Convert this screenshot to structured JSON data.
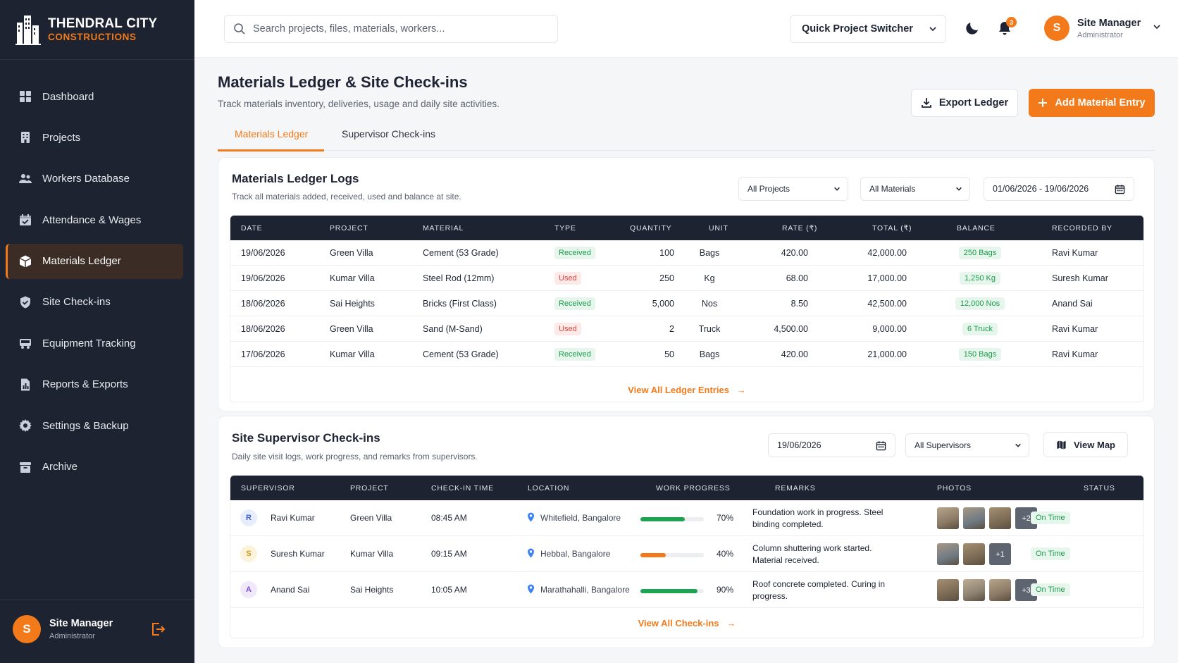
{
  "brand": {
    "name": "THENDRAL CITY",
    "sub": "CONSTRUCTIONS"
  },
  "sidebar": {
    "items": [
      {
        "label": "Dashboard",
        "icon": "grid-icon"
      },
      {
        "label": "Projects",
        "icon": "building-icon"
      },
      {
        "label": "Workers Database",
        "icon": "users-icon"
      },
      {
        "label": "Attendance & Wages",
        "icon": "calendar-check-icon"
      },
      {
        "label": "Materials Ledger",
        "icon": "box-icon",
        "active": true
      },
      {
        "label": "Site Check-ins",
        "icon": "shield-check-icon"
      },
      {
        "label": "Equipment Tracking",
        "icon": "truck-icon"
      },
      {
        "label": "Reports & Exports",
        "icon": "report-icon"
      },
      {
        "label": "Settings & Backup",
        "icon": "gear-icon"
      },
      {
        "label": "Archive",
        "icon": "archive-icon"
      }
    ],
    "user": {
      "initial": "S",
      "name": "Site Manager",
      "role": "Administrator"
    }
  },
  "topbar": {
    "search_placeholder": "Search projects, files, materials, workers...",
    "switcher": "Quick Project Switcher",
    "notifications": "3",
    "user": {
      "initial": "S",
      "name": "Site Manager",
      "role": "Administrator"
    }
  },
  "page": {
    "title": "Materials Ledger & Site Check-ins",
    "subtitle": "Track materials inventory, deliveries, usage and daily site activities.",
    "export_label": "Export Ledger",
    "add_label": "Add Material Entry",
    "tabs": [
      "Materials Ledger",
      "Supervisor Check-ins"
    ]
  },
  "ledger": {
    "title": "Materials Ledger Logs",
    "subtitle": "Track all materials added, received, used and balance at site.",
    "filter_project": "All Projects",
    "filter_material": "All Materials",
    "date_range": "01/06/2026 - 19/06/2026",
    "columns": [
      "DATE",
      "PROJECT",
      "MATERIAL",
      "TYPE",
      "QUANTITY",
      "UNIT",
      "RATE (₹)",
      "TOTAL (₹)",
      "BALANCE",
      "RECORDED BY"
    ],
    "rows": [
      {
        "date": "19/06/2026",
        "project": "Green Villa",
        "material": "Cement (53 Grade)",
        "type": "Received",
        "qty": "100",
        "unit": "Bags",
        "rate": "420.00",
        "total": "42,000.00",
        "balance": "250 Bags",
        "by": "Ravi Kumar"
      },
      {
        "date": "19/06/2026",
        "project": "Kumar Villa",
        "material": "Steel Rod (12mm)",
        "type": "Used",
        "qty": "250",
        "unit": "Kg",
        "rate": "68.00",
        "total": "17,000.00",
        "balance": "1,250 Kg",
        "by": "Suresh Kumar"
      },
      {
        "date": "18/06/2026",
        "project": "Sai Heights",
        "material": "Bricks (First Class)",
        "type": "Received",
        "qty": "5,000",
        "unit": "Nos",
        "rate": "8.50",
        "total": "42,500.00",
        "balance": "12,000 Nos",
        "by": "Anand Sai"
      },
      {
        "date": "18/06/2026",
        "project": "Green Villa",
        "material": "Sand (M-Sand)",
        "type": "Used",
        "qty": "2",
        "unit": "Truck",
        "rate": "4,500.00",
        "total": "9,000.00",
        "balance": "6 Truck",
        "by": "Ravi Kumar"
      },
      {
        "date": "17/06/2026",
        "project": "Kumar Villa",
        "material": "Cement (53 Grade)",
        "type": "Received",
        "qty": "50",
        "unit": "Bags",
        "rate": "420.00",
        "total": "21,000.00",
        "balance": "150 Bags",
        "by": "Ravi Kumar"
      }
    ],
    "view_all": "View All Ledger Entries"
  },
  "checkins": {
    "title": "Site Supervisor Check-ins",
    "subtitle": "Daily site visit logs, work progress, and remarks from supervisors.",
    "date": "19/06/2026",
    "filter_supervisor": "All Supervisors",
    "map_label": "View Map",
    "columns": [
      "SUPERVISOR",
      "PROJECT",
      "CHECK-IN TIME",
      "LOCATION",
      "WORK PROGRESS",
      "REMARKS",
      "PHOTOS",
      "STATUS"
    ],
    "rows": [
      {
        "initial": "R",
        "name": "Ravi Kumar",
        "project": "Green Villa",
        "time": "08:45 AM",
        "location": "Whitefield, Bangalore",
        "progress": 70,
        "progress_label": "70%",
        "color": "#1fa353",
        "remarks": "Foundation work in progress. Steel binding completed.",
        "photos": 3,
        "more": "+2",
        "status": "On Time",
        "avatar_bg": "#e8edfb",
        "avatar_fg": "#3a5fd0"
      },
      {
        "initial": "S",
        "name": "Suresh Kumar",
        "project": "Kumar Villa",
        "time": "09:15 AM",
        "location": "Hebbal, Bangalore",
        "progress": 40,
        "progress_label": "40%",
        "color": "#f27a1a",
        "remarks": "Column shuttering work started. Material received.",
        "photos": 2,
        "more": "+1",
        "status": "On Time",
        "avatar_bg": "#fdf3dc",
        "avatar_fg": "#d49a14"
      },
      {
        "initial": "A",
        "name": "Anand Sai",
        "project": "Sai Heights",
        "time": "10:05 AM",
        "location": "Marathahalli, Bangalore",
        "progress": 90,
        "progress_label": "90%",
        "color": "#1fa353",
        "remarks": "Roof concrete completed. Curing in progress.",
        "photos": 3,
        "more": "+3",
        "status": "On Time",
        "avatar_bg": "#efe9fb",
        "avatar_fg": "#7a4fd0"
      }
    ],
    "view_all": "View All Check-ins"
  },
  "colors": {
    "accent": "#f27a1a",
    "sidebar": "#1d2330",
    "success": "#1d9a4b",
    "danger": "#d4483f"
  }
}
